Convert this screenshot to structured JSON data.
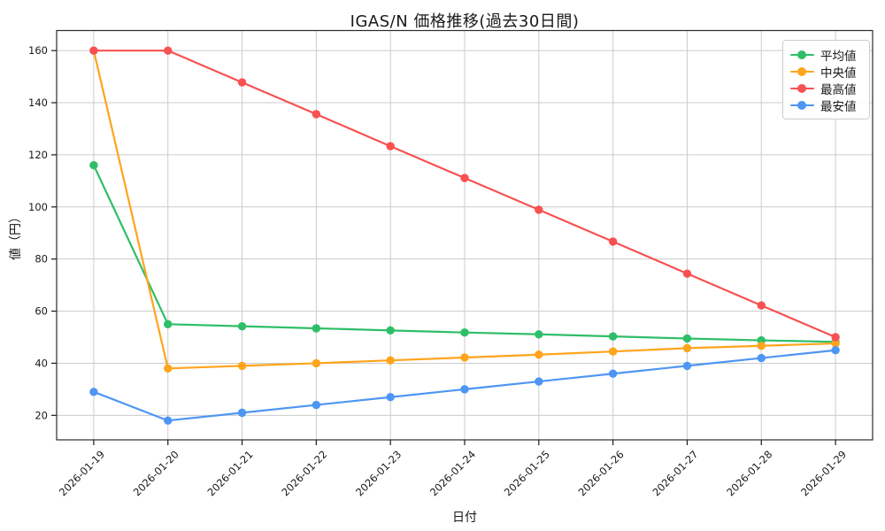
{
  "chart_data": {
    "type": "line",
    "title": "IGAS/N 価格推移(過去30日間)",
    "xlabel": "日付",
    "ylabel": "値（円）",
    "categories": [
      "2026-01-19",
      "2026-01-20",
      "2026-01-21",
      "2026-01-22",
      "2026-01-23",
      "2026-01-24",
      "2026-01-25",
      "2026-01-26",
      "2026-01-27",
      "2026-01-28",
      "2026-01-29"
    ],
    "series": [
      {
        "name": "平均値",
        "color": "#2fbe68",
        "values": [
          116,
          55,
          54.2,
          53.4,
          52.6,
          51.8,
          51.1,
          50.3,
          49.5,
          48.8,
          48.2
        ]
      },
      {
        "name": "中央値",
        "color": "#ffa41c",
        "values": [
          160,
          38,
          39,
          40,
          41.1,
          42.2,
          43.3,
          44.5,
          45.8,
          46.7,
          47.6
        ]
      },
      {
        "name": "最高値",
        "color": "#f85151",
        "values": [
          160,
          160,
          147.8,
          135.6,
          123.3,
          111.1,
          98.9,
          86.7,
          74.4,
          62.2,
          50
        ]
      },
      {
        "name": "最安値",
        "color": "#4e96f3",
        "values": [
          29,
          18,
          21,
          24,
          27,
          30,
          33,
          36,
          39,
          42,
          45
        ]
      }
    ],
    "yticks": [
      20,
      40,
      60,
      80,
      100,
      120,
      140,
      160
    ],
    "ylim": [
      10.6,
      167.7
    ],
    "grid": true,
    "legend_position": "upper right"
  },
  "colors": {
    "background": "#ffffff",
    "grid": "#cccccc",
    "spine": "#2b2b2b",
    "tick": "#191919",
    "text": "#191919"
  }
}
